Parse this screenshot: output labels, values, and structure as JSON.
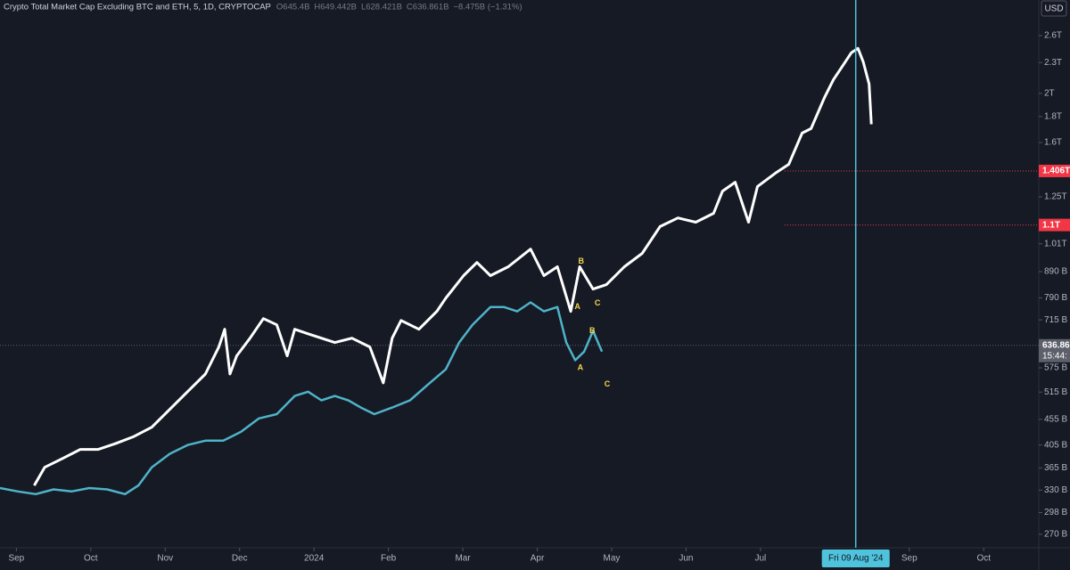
{
  "chart_data": {
    "type": "line",
    "title": "Crypto Total Market Cap Excluding BTC and ETH, 5, 1D, CRYPTOCAP",
    "ohlc": [
      "O645.4B",
      "H649.442B",
      "L628.421B",
      "C636.861B",
      "−8.475B (−1.31%)"
    ],
    "currency": "USD",
    "log_scale": true,
    "xlim": [
      -0.22,
      13.74
    ],
    "xticks": [
      {
        "value": 0,
        "label": "Sep"
      },
      {
        "value": 1,
        "label": "Oct"
      },
      {
        "value": 2,
        "label": "Nov"
      },
      {
        "value": 3,
        "label": "Dec"
      },
      {
        "value": 4,
        "label": "2024"
      },
      {
        "value": 5,
        "label": "Feb"
      },
      {
        "value": 6,
        "label": "Mar"
      },
      {
        "value": 7,
        "label": "Apr"
      },
      {
        "value": 8,
        "label": "May"
      },
      {
        "value": 9,
        "label": "Jun"
      },
      {
        "value": 10,
        "label": "Jul"
      },
      {
        "value": 12,
        "label": "Sep"
      },
      {
        "value": 13,
        "label": "Oct"
      }
    ],
    "ylim": [
      254,
      3056
    ],
    "yticks": [
      {
        "value": 2600,
        "label": "2.6T"
      },
      {
        "value": 2300,
        "label": "2.3T"
      },
      {
        "value": 2000,
        "label": "2T"
      },
      {
        "value": 1800,
        "label": "1.8T"
      },
      {
        "value": 1600,
        "label": "1.6T"
      },
      {
        "value": 1250,
        "label": "1.25T"
      },
      {
        "value": 1010,
        "label": "1.01T"
      },
      {
        "value": 890,
        "label": "890 B"
      },
      {
        "value": 790,
        "label": "790 B"
      },
      {
        "value": 715,
        "label": "715 B"
      },
      {
        "value": 575,
        "label": "575 B"
      },
      {
        "value": 515,
        "label": "515 B"
      },
      {
        "value": 455,
        "label": "455 B"
      },
      {
        "value": 405,
        "label": "405 B"
      },
      {
        "value": 365,
        "label": "365 B"
      },
      {
        "value": 330,
        "label": "330 B"
      },
      {
        "value": 298,
        "label": "298 B"
      },
      {
        "value": 270,
        "label": "270 B"
      }
    ],
    "series": [
      {
        "color": "#ffffff",
        "x": [
          0.24,
          0.38,
          0.62,
          0.86,
          1.1,
          1.34,
          1.58,
          1.82,
          2.06,
          2.3,
          2.54,
          2.72,
          2.8,
          2.87,
          2.96,
          3.14,
          3.32,
          3.5,
          3.64,
          3.74,
          3.92,
          4.1,
          4.28,
          4.51,
          4.75,
          4.93,
          5.05,
          5.17,
          5.41,
          5.65,
          5.77,
          6.01,
          6.19,
          6.37,
          6.61,
          6.91,
          7.09,
          7.27,
          7.45,
          7.57,
          7.75,
          7.93,
          8.17,
          8.41,
          8.65,
          8.89,
          9.13,
          9.37,
          9.49,
          9.66,
          9.84,
          9.96,
          10.2,
          10.38,
          10.56,
          10.68,
          10.86,
          10.98,
          11.1,
          11.22,
          11.31,
          11.38,
          11.46,
          11.49
        ],
        "values": [
          337,
          366,
          381,
          397,
          397,
          408,
          421,
          439,
          476,
          516,
          559,
          632,
          685,
          559,
          607,
          658,
          719,
          699,
          607,
          685,
          671,
          658,
          645,
          658,
          632,
          537,
          658,
          713,
          685,
          743,
          789,
          874,
          928,
          874,
          910,
          986,
          874,
          910,
          743,
          910,
          822,
          839,
          910,
          967,
          1092,
          1136,
          1114,
          1160,
          1283,
          1336,
          1114,
          1310,
          1392,
          1449,
          1670,
          1704,
          1963,
          2129,
          2262,
          2404,
          2453,
          2308,
          2086,
          1738
        ]
      },
      {
        "color": "#4fb3c8",
        "x": [
          -0.22,
          0.02,
          0.26,
          0.5,
          0.74,
          0.98,
          1.22,
          1.46,
          1.64,
          1.82,
          2.06,
          2.3,
          2.54,
          2.78,
          3.02,
          3.26,
          3.5,
          3.74,
          3.92,
          4.1,
          4.28,
          4.46,
          4.63,
          4.81,
          5.05,
          5.29,
          5.53,
          5.77,
          5.95,
          6.13,
          6.37,
          6.55,
          6.73,
          6.91,
          7.09,
          7.27,
          7.39,
          7.51,
          7.63,
          7.75,
          7.87
        ],
        "values": [
          333,
          328,
          324,
          331,
          328,
          333,
          331,
          324,
          337,
          366,
          389,
          405,
          413,
          413,
          430,
          457,
          466,
          506,
          516,
          496,
          506,
          496,
          480,
          466,
          480,
          496,
          533,
          571,
          645,
          699,
          758,
          758,
          743,
          774,
          743,
          758,
          645,
          595,
          619,
          680,
          619
        ]
      }
    ],
    "price_lines": [
      {
        "value": 1406,
        "label": "1.406T",
        "color": "#f23645"
      },
      {
        "value": 1100,
        "label": "1.1T",
        "color": "#f23645"
      },
      {
        "value": 636.86,
        "label": "636.86",
        "sublabel": "15:44:",
        "color": "#5d606b"
      }
    ],
    "crosshair": {
      "x": 11.28,
      "label": "Fri 09 Aug '24",
      "color": "#4fc3dc"
    },
    "annotations": [
      {
        "text": "B",
        "x": 7.59,
        "y": 932
      },
      {
        "text": "A",
        "x": 7.54,
        "y": 758
      },
      {
        "text": "C",
        "x": 7.81,
        "y": 770
      },
      {
        "text": "B",
        "x": 7.74,
        "y": 680
      },
      {
        "text": "A",
        "x": 7.58,
        "y": 575
      },
      {
        "text": "C",
        "x": 7.94,
        "y": 533
      }
    ]
  }
}
